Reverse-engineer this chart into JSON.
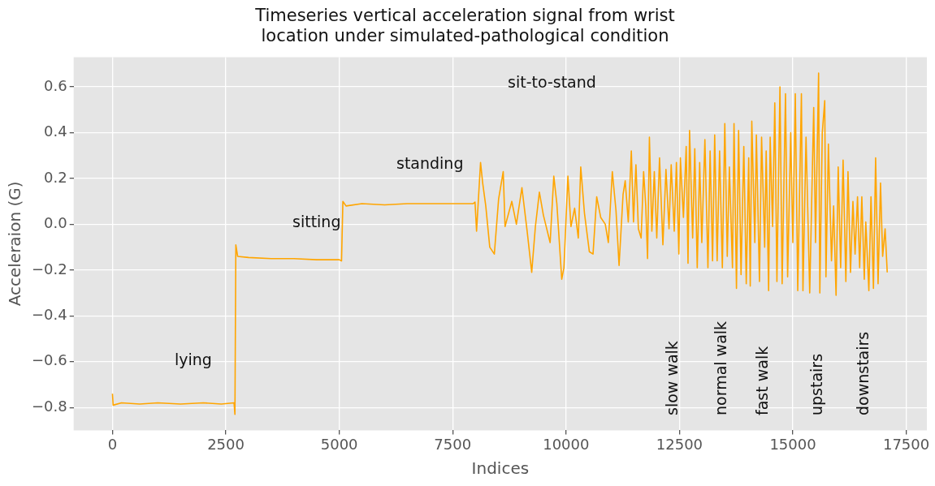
{
  "chart_data": {
    "type": "line",
    "title": "Timeseries vertical acceleration signal from wrist\nlocation under simulated-pathological condition",
    "xlabel": "Indices",
    "ylabel": "Acceleraion (G)",
    "series": [
      {
        "color": "#ffa500",
        "x": [
          0,
          15,
          200,
          600,
          1000,
          1500,
          2000,
          2400,
          2680,
          2700,
          2720,
          2760,
          3000,
          3500,
          4000,
          4500,
          5000,
          5050,
          5080,
          5150,
          5500,
          6000,
          6500,
          7000,
          7500,
          7950,
          7993,
          8027,
          8115,
          8162,
          8230,
          8318,
          8419,
          8513,
          8615,
          8655,
          8804,
          8905,
          9027,
          9142,
          9243,
          9324,
          9412,
          9500,
          9649,
          9730,
          9797,
          9905,
          9953,
          10041,
          10108,
          10189,
          10270,
          10324,
          10405,
          10514,
          10595,
          10676,
          10764,
          10865,
          10932,
          11020,
          11101,
          11169,
          11257,
          11304,
          11372,
          11439,
          11487,
          11541,
          11595,
          11655,
          11710,
          11757,
          11797,
          11838,
          11892,
          11946,
          12000,
          12061,
          12135,
          12203,
          12270,
          12318,
          12385,
          12433,
          12487,
          12520,
          12588,
          12649,
          12689,
          12723,
          12791,
          12838,
          12892,
          12946,
          12993,
          13061,
          13128,
          13176,
          13230,
          13277,
          13331,
          13385,
          13446,
          13500,
          13554,
          13601,
          13669,
          13703,
          13757,
          13804,
          13858,
          13919,
          13973,
          14027,
          14061,
          14095,
          14162,
          14196,
          14264,
          14311,
          14379,
          14412,
          14466,
          14500,
          14554,
          14602,
          14649,
          14716,
          14764,
          14838,
          14885,
          14953,
          15000,
          15054,
          15108,
          15189,
          15223,
          15291,
          15372,
          15460,
          15500,
          15568,
          15595,
          15649,
          15703,
          15730,
          15784,
          15852,
          15899,
          15953,
          16000,
          16054,
          16108,
          16169,
          16216,
          16271,
          16325,
          16372,
          16426,
          16473,
          16521,
          16575,
          16608,
          16676,
          16723,
          16777,
          16825,
          16879,
          16933,
          16980,
          17034,
          17081
        ],
        "values": [
          -0.74,
          -0.79,
          -0.78,
          -0.785,
          -0.78,
          -0.785,
          -0.78,
          -0.785,
          -0.78,
          -0.83,
          -0.09,
          -0.14,
          -0.145,
          -0.15,
          -0.15,
          -0.155,
          -0.155,
          -0.16,
          0.1,
          0.08,
          0.09,
          0.085,
          0.09,
          0.09,
          0.09,
          0.09,
          0.097,
          -0.03,
          0.27,
          0.18,
          0.08,
          -0.1,
          -0.13,
          0.11,
          0.23,
          -0.01,
          0.1,
          0.0,
          0.16,
          -0.03,
          -0.21,
          -0.01,
          0.14,
          0.04,
          -0.08,
          0.21,
          0.09,
          -0.24,
          -0.19,
          0.21,
          -0.01,
          0.07,
          -0.06,
          0.25,
          0.05,
          -0.12,
          -0.13,
          0.12,
          0.03,
          0.0,
          -0.08,
          0.23,
          0.06,
          -0.18,
          0.13,
          0.19,
          0.01,
          0.32,
          0.01,
          0.26,
          -0.02,
          -0.06,
          0.23,
          0.08,
          -0.15,
          0.38,
          -0.03,
          0.23,
          -0.06,
          0.29,
          -0.09,
          0.24,
          -0.02,
          0.26,
          -0.03,
          0.27,
          -0.13,
          0.29,
          0.03,
          0.34,
          -0.17,
          0.41,
          -0.06,
          0.33,
          -0.19,
          0.27,
          -0.08,
          0.37,
          -0.19,
          0.32,
          -0.16,
          0.39,
          -0.16,
          0.32,
          -0.19,
          0.44,
          -0.14,
          0.25,
          -0.19,
          0.44,
          -0.28,
          0.41,
          -0.22,
          0.34,
          -0.26,
          0.29,
          -0.27,
          0.45,
          -0.08,
          0.39,
          -0.25,
          0.38,
          -0.1,
          0.32,
          -0.29,
          0.38,
          -0.01,
          0.53,
          -0.25,
          0.6,
          -0.26,
          0.57,
          -0.23,
          0.4,
          -0.08,
          0.57,
          -0.29,
          0.57,
          -0.29,
          0.38,
          -0.3,
          0.51,
          -0.08,
          0.66,
          -0.3,
          0.4,
          0.54,
          -0.23,
          0.35,
          -0.16,
          0.08,
          -0.31,
          0.25,
          -0.19,
          0.28,
          -0.25,
          0.23,
          -0.21,
          0.1,
          -0.13,
          0.12,
          -0.19,
          0.12,
          -0.24,
          0.01,
          -0.29,
          0.12,
          -0.28,
          0.29,
          -0.26,
          0.18,
          -0.14,
          -0.02,
          -0.21
        ]
      }
    ],
    "xlim": [
      -855,
      17955
    ],
    "ylim": [
      -0.9,
      0.73
    ],
    "xticks": [
      0,
      2500,
      5000,
      7500,
      10000,
      12500,
      15000,
      17500
    ],
    "yticks": [
      {
        "value": -0.8,
        "label": "−0.8"
      },
      {
        "value": -0.6,
        "label": "−0.6"
      },
      {
        "value": -0.4,
        "label": "−0.4"
      },
      {
        "value": -0.2,
        "label": "−0.2"
      },
      {
        "value": 0,
        "label": "0.0"
      },
      {
        "value": 0.2,
        "label": "0.2"
      },
      {
        "value": 0.4,
        "label": "0.4"
      },
      {
        "value": 0.6,
        "label": "0.6"
      }
    ],
    "grid": true,
    "annotations": [
      "lying",
      "sitting",
      "standing",
      "sit-to-stand",
      "slow walk",
      "normal walk",
      "fast walk",
      "upstairs",
      "downstairs"
    ]
  }
}
